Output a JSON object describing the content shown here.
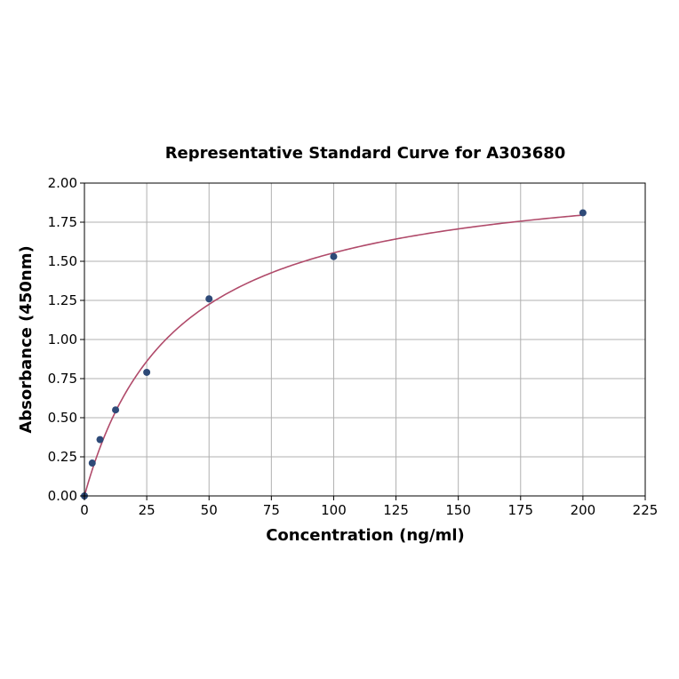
{
  "chart_data": {
    "type": "scatter",
    "title": "Representative Standard Curve for A303680",
    "xlabel": "Concentration (ng/ml)",
    "ylabel": "Absorbance (450nm)",
    "xlim": [
      0,
      225
    ],
    "ylim": [
      0,
      2
    ],
    "x_ticks": [
      0,
      25,
      50,
      75,
      100,
      125,
      150,
      175,
      200,
      225
    ],
    "y_ticks": [
      0,
      0.25,
      0.5,
      0.75,
      1.0,
      1.25,
      1.5,
      1.75,
      2.0
    ],
    "x_tick_labels": [
      "0",
      "25",
      "50",
      "75",
      "100",
      "125",
      "150",
      "175",
      "200",
      "225"
    ],
    "y_tick_labels": [
      "0.00",
      "0.25",
      "0.50",
      "0.75",
      "1.00",
      "1.25",
      "1.50",
      "1.75",
      "2.00"
    ],
    "grid": true,
    "points": {
      "x": [
        0,
        3.125,
        6.25,
        12.5,
        25,
        50,
        100,
        200
      ],
      "y": [
        0.0,
        0.21,
        0.36,
        0.55,
        0.79,
        1.26,
        1.53,
        1.81
      ]
    },
    "fit_curve": {
      "type": "hyperbolic",
      "x_range": [
        0,
        200
      ]
    },
    "colors": {
      "points": "#2e4a78",
      "curve": "#b04a6a",
      "grid": "#b0b0b0"
    }
  }
}
